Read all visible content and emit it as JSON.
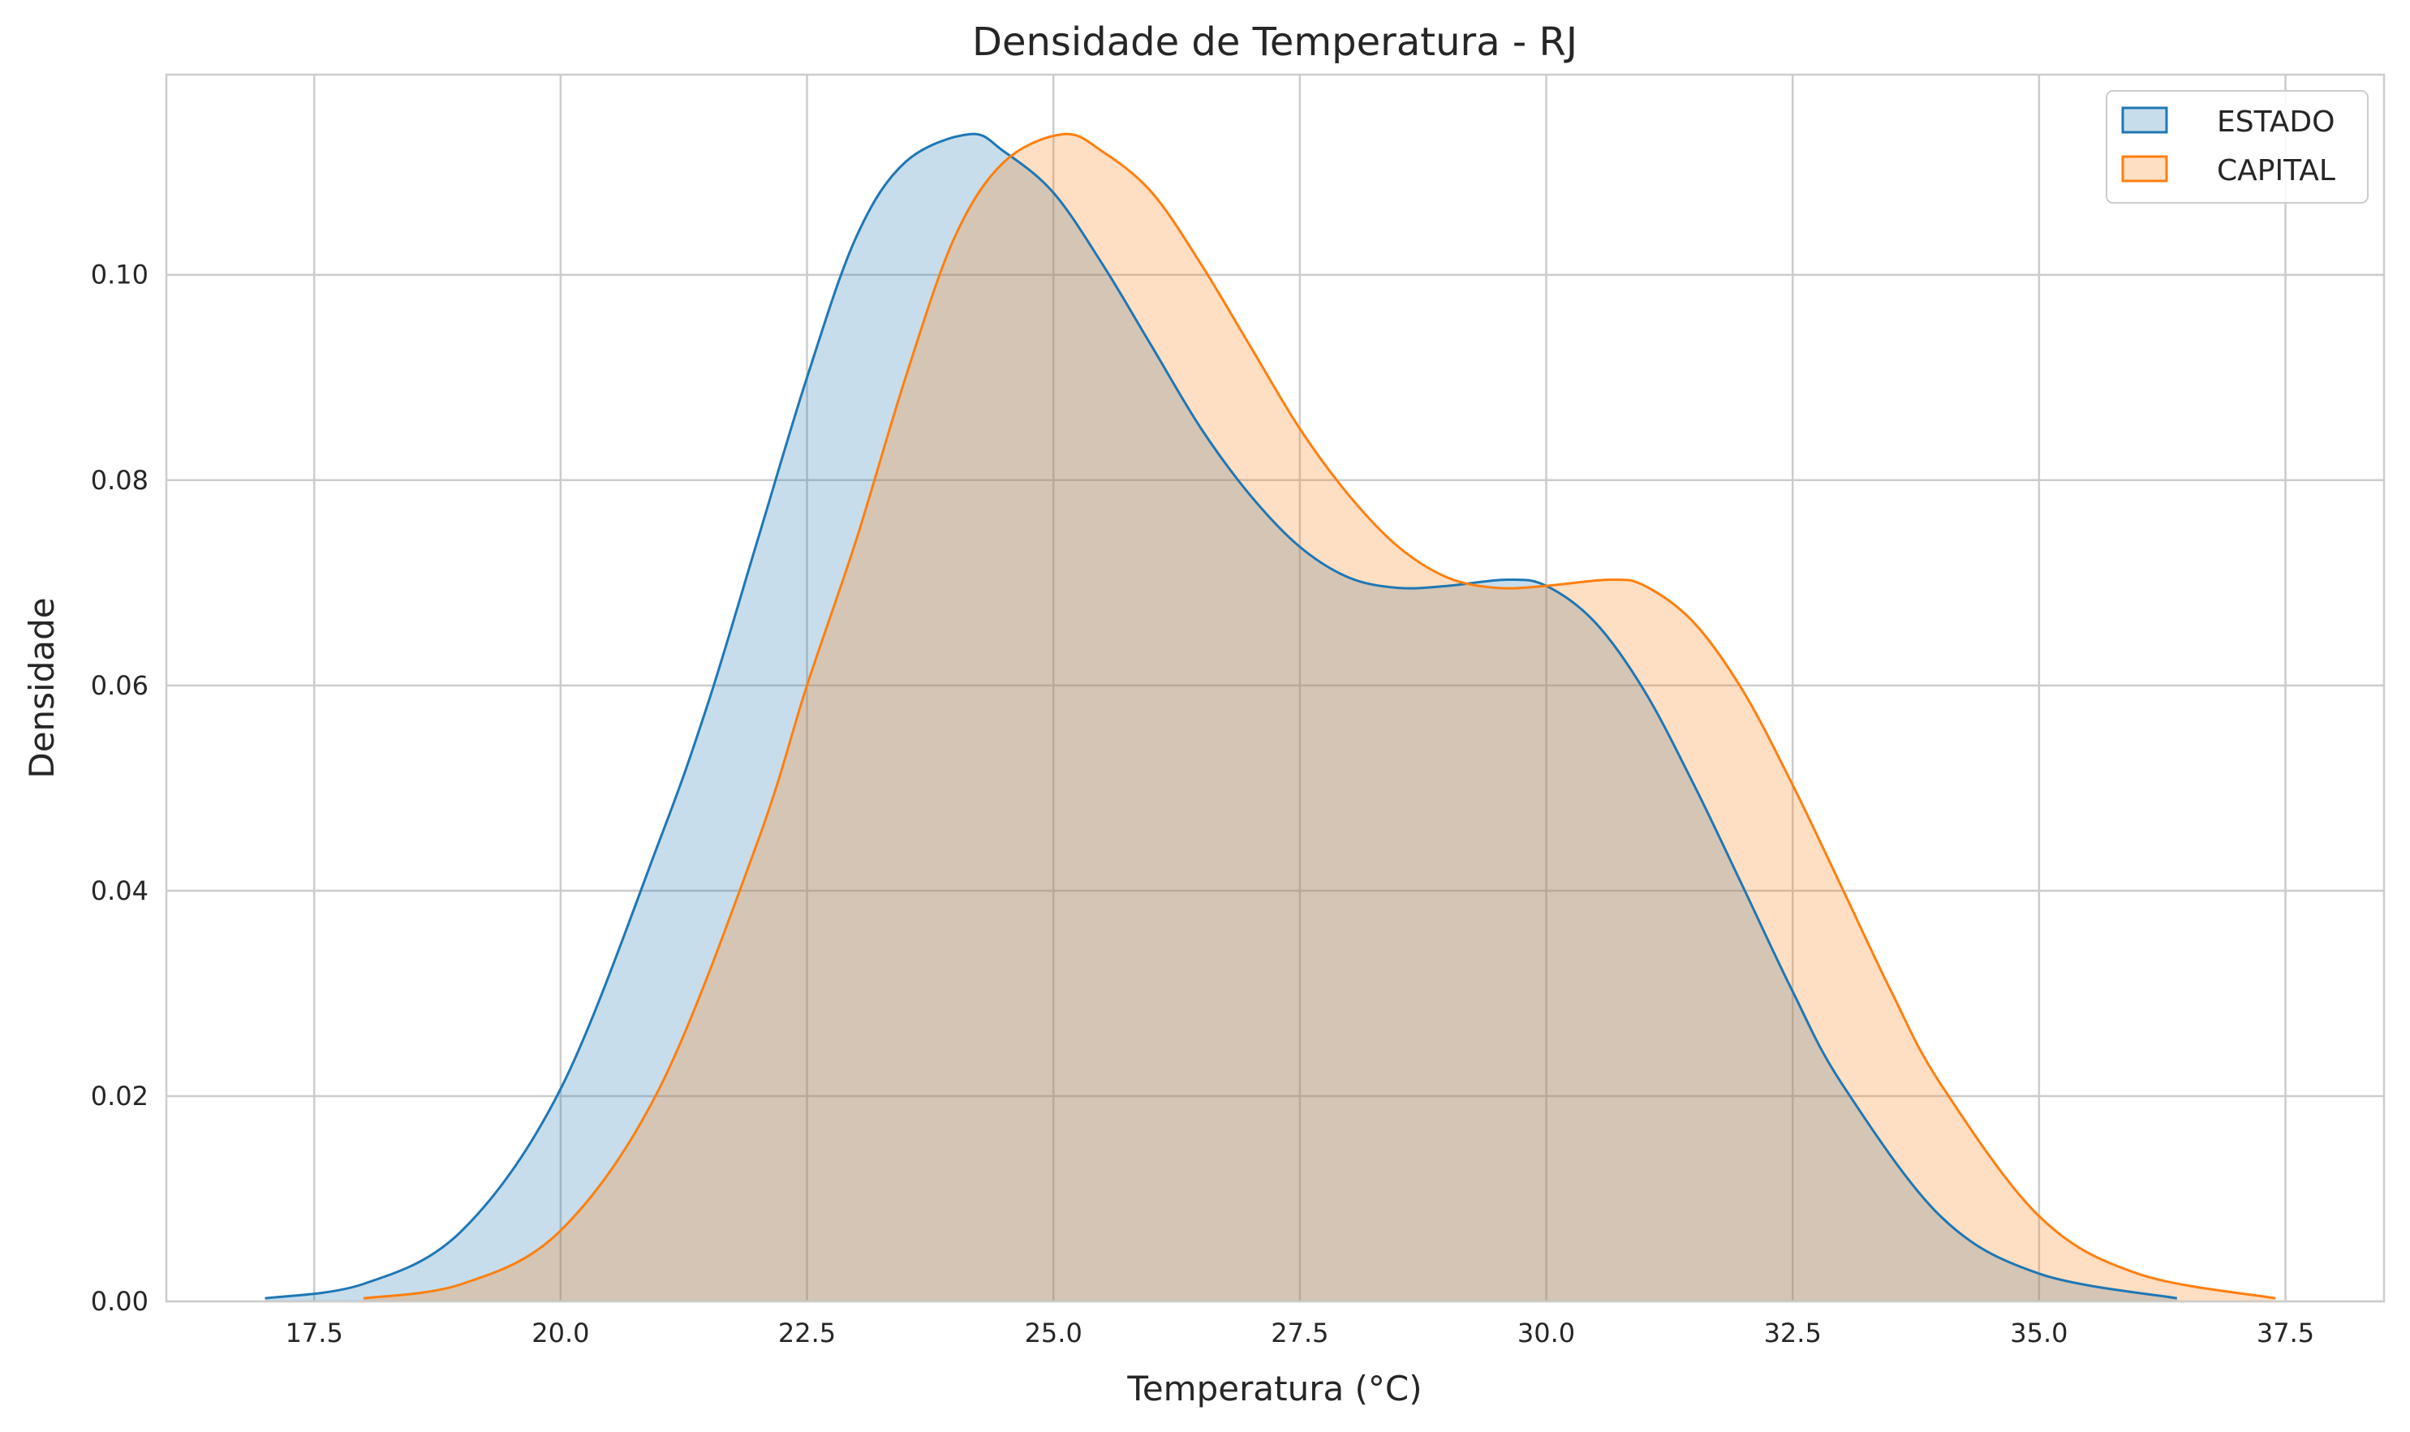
{
  "chart_data": {
    "type": "area",
    "title": "Densidade de Temperatura - RJ",
    "xlabel": "Temperatura (°C)",
    "ylabel": "Densidade",
    "xlim": [
      16.0,
      38.5
    ],
    "ylim": [
      0.0,
      0.1195
    ],
    "xticks": [
      17.5,
      20.0,
      22.5,
      25.0,
      27.5,
      30.0,
      32.5,
      35.0,
      37.5
    ],
    "xtick_labels": [
      "17.5",
      "20.0",
      "22.5",
      "25.0",
      "27.5",
      "30.0",
      "32.5",
      "35.0",
      "37.5"
    ],
    "yticks": [
      0.0,
      0.02,
      0.04,
      0.06,
      0.08,
      0.1
    ],
    "ytick_labels": [
      "0.00",
      "0.02",
      "0.04",
      "0.06",
      "0.08",
      "0.10"
    ],
    "grid": true,
    "legend_position": "top-right",
    "series": [
      {
        "name": "ESTADO",
        "color": "#1f77b4",
        "fill_opacity": 0.25,
        "x": [
          17.0,
          18.0,
          19.0,
          20.0,
          21.0,
          21.5,
          22.0,
          22.5,
          23.0,
          23.5,
          24.15,
          24.5,
          25.0,
          25.5,
          26.0,
          26.5,
          27.0,
          27.5,
          28.0,
          28.5,
          29.0,
          29.6,
          30.0,
          30.5,
          31.0,
          31.5,
          32.0,
          32.5,
          33.0,
          34.0,
          35.0,
          36.4
        ],
        "values": [
          0.0003,
          0.0017,
          0.0069,
          0.0207,
          0.0448,
          0.0584,
          0.0742,
          0.09,
          0.1037,
          0.111,
          0.1137,
          0.112,
          0.108,
          0.101,
          0.093,
          0.085,
          0.0785,
          0.0735,
          0.0705,
          0.0695,
          0.0697,
          0.0703,
          0.0697,
          0.0661,
          0.0594,
          0.0503,
          0.0403,
          0.0302,
          0.0212,
          0.0083,
          0.0027,
          0.0003
        ]
      },
      {
        "name": "CAPITAL",
        "color": "#ff7f0e",
        "fill_opacity": 0.25,
        "x": [
          18.0,
          19.0,
          20.0,
          21.0,
          22.0,
          22.5,
          23.0,
          23.5,
          24.0,
          24.5,
          25.1,
          25.5,
          26.0,
          26.5,
          27.0,
          27.5,
          28.0,
          28.5,
          29.0,
          29.5,
          30.0,
          30.65,
          31.0,
          31.5,
          32.0,
          32.5,
          33.0,
          33.5,
          34.0,
          35.0,
          36.0,
          37.4
        ],
        "values": [
          0.0003,
          0.0017,
          0.0069,
          0.0207,
          0.0448,
          0.06,
          0.0742,
          0.09,
          0.1037,
          0.111,
          0.1137,
          0.112,
          0.108,
          0.101,
          0.093,
          0.085,
          0.0785,
          0.0735,
          0.0705,
          0.0695,
          0.0697,
          0.0703,
          0.0697,
          0.0661,
          0.0594,
          0.0503,
          0.0403,
          0.0302,
          0.0212,
          0.0083,
          0.0027,
          0.0003
        ]
      }
    ]
  }
}
